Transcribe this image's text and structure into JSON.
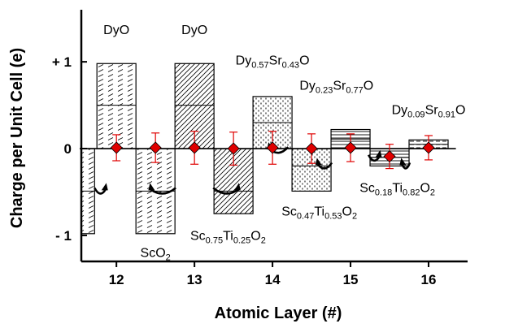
{
  "chart_data": {
    "type": "bar",
    "xlabel": "Atomic Layer (#)",
    "ylabel": "Charge per Unit Cell (e)",
    "xlim": [
      11.55,
      16.5
    ],
    "ylim": [
      -1.3,
      1.6
    ],
    "x_ticks": [
      12,
      13,
      14,
      15,
      16
    ],
    "x_tick_labels": [
      "12",
      "13",
      "14",
      "15",
      "16"
    ],
    "y_ticks": [
      1,
      0,
      -1
    ],
    "y_tick_labels": [
      "+ 1",
      "0",
      "- 1"
    ],
    "grid": false,
    "bars": [
      {
        "x0": 11.55,
        "x1": 11.72,
        "y0": 0,
        "y1": -0.98,
        "split": -0.49,
        "pattern": "dash",
        "label": ""
      },
      {
        "x0": 11.75,
        "x1": 12.25,
        "y0": 0,
        "y1": 0.98,
        "split": 0.5,
        "pattern": "dash",
        "label": "DyO"
      },
      {
        "x0": 12.25,
        "x1": 12.75,
        "y0": 0,
        "y1": -0.98,
        "split": -0.49,
        "pattern": "dash",
        "label": "ScO2"
      },
      {
        "x0": 12.75,
        "x1": 13.25,
        "y0": 0,
        "y1": 0.98,
        "split": 0.5,
        "pattern": "diag",
        "label": "DyO"
      },
      {
        "x0": 13.25,
        "x1": 13.75,
        "y0": 0,
        "y1": -0.75,
        "split": -0.49,
        "pattern": "diag",
        "label": "Sc0.75Ti0.25O2"
      },
      {
        "x0": 13.75,
        "x1": 14.25,
        "y0": 0,
        "y1": 0.6,
        "split": 0.3,
        "pattern": "dot",
        "label": "Dy0.57Sr0.43O"
      },
      {
        "x0": 14.25,
        "x1": 14.75,
        "y0": 0,
        "y1": -0.49,
        "split": -0.2,
        "pattern": "dot",
        "label": "Sc0.47Ti0.53O2"
      },
      {
        "x0": 14.75,
        "x1": 15.25,
        "y0": 0,
        "y1": 0.22,
        "split": 0.11,
        "pattern": "hline",
        "label": "Dy0.23Sr0.77O"
      },
      {
        "x0": 15.25,
        "x1": 15.75,
        "y0": 0,
        "y1": -0.2,
        "split": -0.1,
        "pattern": "hline",
        "label": "Sc0.18Ti0.82O2"
      },
      {
        "x0": 15.75,
        "x1": 16.25,
        "y0": 0,
        "y1": 0.1,
        "split": 0.05,
        "pattern": "hdash",
        "label": "Dy0.09Sr0.91O"
      }
    ],
    "points": {
      "marker": "diamond",
      "color": "#e00000",
      "x": [
        12,
        12.5,
        13,
        13.5,
        14,
        14.5,
        15,
        15.5,
        16
      ],
      "y": [
        0.01,
        0.01,
        0.01,
        0.0,
        0.01,
        0.0,
        0.01,
        -0.09,
        0.01
      ],
      "error": [
        0.15,
        0.17,
        0.19,
        0.19,
        0.19,
        0.17,
        0.16,
        0.14,
        0.14
      ]
    },
    "arrows": [
      {
        "x_from": 11.72,
        "x_to": 11.86,
        "y": -0.49
      },
      {
        "x_from": 12.76,
        "x_to": 12.44,
        "y": -0.49
      },
      {
        "x_from": 13.24,
        "x_to": 13.56,
        "y": -0.49
      },
      {
        "x_from": 14.2,
        "x_to": 13.96,
        "y": -0.02
      },
      {
        "x_from": 14.76,
        "x_to": 14.58,
        "y": -0.2
      },
      {
        "x_from": 15.23,
        "x_to": 15.37,
        "y": -0.11
      },
      {
        "x_from": 15.76,
        "x_to": 15.66,
        "y": -0.2
      }
    ],
    "annotations": [
      {
        "id": "dyo-12",
        "parts": [
          [
            "DyO",
            ""
          ]
        ],
        "x": 12.0,
        "y": 1.32
      },
      {
        "id": "sco2",
        "parts": [
          [
            "ScO",
            ""
          ],
          [
            "2",
            "sub"
          ]
        ],
        "x": 12.5,
        "y": -1.25
      },
      {
        "id": "dyo-13",
        "parts": [
          [
            "DyO",
            ""
          ]
        ],
        "x": 13.0,
        "y": 1.32
      },
      {
        "id": "sc075",
        "parts": [
          [
            "Sc",
            ""
          ],
          [
            "0.75",
            "sub"
          ],
          [
            "Ti",
            ""
          ],
          [
            "0.25",
            "sub"
          ],
          [
            "O",
            ""
          ],
          [
            "2",
            "sub"
          ]
        ],
        "x": 13.43,
        "y": -1.05
      },
      {
        "id": "dy057",
        "parts": [
          [
            "Dy",
            ""
          ],
          [
            "0.57",
            "sub"
          ],
          [
            "Sr",
            ""
          ],
          [
            "0.43",
            "sub"
          ],
          [
            "O",
            ""
          ]
        ],
        "x": 14.0,
        "y": 0.97
      },
      {
        "id": "sc047",
        "parts": [
          [
            "Sc",
            ""
          ],
          [
            "0.47",
            "sub"
          ],
          [
            "Ti",
            ""
          ],
          [
            "0.53",
            "sub"
          ],
          [
            "O",
            ""
          ],
          [
            "2",
            "sub"
          ]
        ],
        "x": 14.6,
        "y": -0.77
      },
      {
        "id": "dy023",
        "parts": [
          [
            "Dy",
            ""
          ],
          [
            "0.23",
            "sub"
          ],
          [
            "Sr",
            ""
          ],
          [
            "0.77",
            "sub"
          ],
          [
            "O",
            ""
          ]
        ],
        "x": 14.82,
        "y": 0.68
      },
      {
        "id": "sc018",
        "parts": [
          [
            "Sc",
            ""
          ],
          [
            "0.18",
            "sub"
          ],
          [
            "Ti",
            ""
          ],
          [
            "0.82",
            "sub"
          ],
          [
            "O",
            ""
          ],
          [
            "2",
            "sub"
          ]
        ],
        "x": 15.6,
        "y": -0.5
      },
      {
        "id": "dy009",
        "parts": [
          [
            "Dy",
            ""
          ],
          [
            "0.09",
            "sub"
          ],
          [
            "Sr",
            ""
          ],
          [
            "0.91",
            "sub"
          ],
          [
            "O",
            ""
          ]
        ],
        "x": 16.0,
        "y": 0.4
      }
    ]
  }
}
